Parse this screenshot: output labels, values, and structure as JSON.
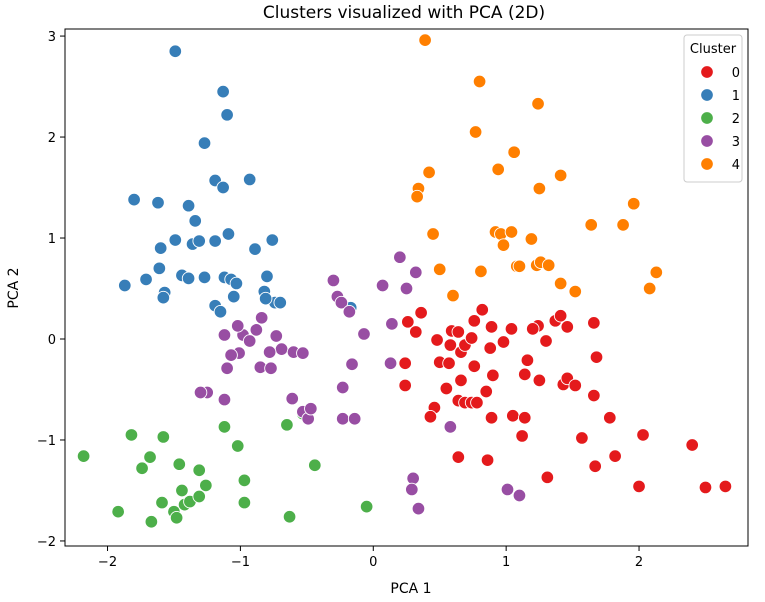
{
  "chart_data": {
    "type": "scatter",
    "title": "Clusters visualized with PCA (2D)",
    "xlabel": "PCA 1",
    "ylabel": "PCA 2",
    "xlim": [
      -2.32,
      2.82
    ],
    "ylim": [
      -2.05,
      3.07
    ],
    "xticks": [
      -2,
      -1,
      0,
      1,
      2
    ],
    "yticks": [
      -2,
      -1,
      0,
      1,
      2,
      3
    ],
    "xtick_labels": [
      "−2",
      "−1",
      "0",
      "1",
      "2"
    ],
    "ytick_labels": [
      "−2",
      "−1",
      "0",
      "1",
      "2",
      "3"
    ],
    "grid": false,
    "legend": {
      "title": "Cluster",
      "placement": "top-right"
    },
    "series": [
      {
        "name": "0",
        "color": "#e41a1c",
        "points": [
          [
            0.26,
            0.17
          ],
          [
            0.36,
            0.26
          ],
          [
            0.59,
            0.08
          ],
          [
            0.58,
            -0.06
          ],
          [
            0.48,
            -0.01
          ],
          [
            0.66,
            -0.13
          ],
          [
            0.64,
            0.07
          ],
          [
            0.76,
            0.18
          ],
          [
            0.82,
            0.29
          ],
          [
            0.89,
            0.12
          ],
          [
            0.69,
            -0.06
          ],
          [
            0.74,
            0.01
          ],
          [
            0.88,
            -0.09
          ],
          [
            0.98,
            -0.03
          ],
          [
            1.04,
            0.1
          ],
          [
            1.24,
            0.13
          ],
          [
            1.2,
            0.1
          ],
          [
            1.37,
            0.18
          ],
          [
            1.41,
            0.23
          ],
          [
            1.46,
            0.12
          ],
          [
            1.3,
            -0.02
          ],
          [
            1.16,
            -0.21
          ],
          [
            0.9,
            -0.36
          ],
          [
            1.14,
            -0.35
          ],
          [
            1.25,
            -0.41
          ],
          [
            1.43,
            -0.45
          ],
          [
            1.46,
            -0.39
          ],
          [
            1.52,
            -0.46
          ],
          [
            1.68,
            -0.18
          ],
          [
            1.66,
            0.16
          ],
          [
            0.24,
            -0.24
          ],
          [
            0.5,
            -0.23
          ],
          [
            0.57,
            -0.24
          ],
          [
            0.66,
            -0.41
          ],
          [
            0.76,
            -0.27
          ],
          [
            0.85,
            -0.52
          ],
          [
            0.55,
            -0.49
          ],
          [
            0.64,
            -0.61
          ],
          [
            0.69,
            -0.63
          ],
          [
            0.74,
            -0.63
          ],
          [
            0.78,
            -0.63
          ],
          [
            0.89,
            -0.78
          ],
          [
            0.46,
            -0.68
          ],
          [
            0.43,
            -0.77
          ],
          [
            1.05,
            -0.76
          ],
          [
            1.14,
            -0.78
          ],
          [
            1.66,
            -0.56
          ],
          [
            1.78,
            -0.78
          ],
          [
            1.57,
            -0.98
          ],
          [
            1.12,
            -0.96
          ],
          [
            2.03,
            -0.95
          ],
          [
            0.64,
            -1.17
          ],
          [
            0.86,
            -1.2
          ],
          [
            1.31,
            -1.37
          ],
          [
            1.67,
            -1.26
          ],
          [
            1.82,
            -1.16
          ],
          [
            2.0,
            -1.46
          ],
          [
            2.4,
            -1.05
          ],
          [
            2.5,
            -1.47
          ],
          [
            2.65,
            -1.46
          ],
          [
            0.24,
            -0.46
          ],
          [
            0.32,
            0.07
          ]
        ]
      },
      {
        "name": "1",
        "color": "#377eb8",
        "points": [
          [
            -1.49,
            2.85
          ],
          [
            -1.13,
            2.45
          ],
          [
            -1.1,
            2.22
          ],
          [
            -1.27,
            1.94
          ],
          [
            -1.19,
            1.57
          ],
          [
            -0.93,
            1.58
          ],
          [
            -1.13,
            1.5
          ],
          [
            -1.8,
            1.38
          ],
          [
            -1.62,
            1.35
          ],
          [
            -1.39,
            1.32
          ],
          [
            -1.34,
            1.17
          ],
          [
            -1.09,
            1.04
          ],
          [
            -1.36,
            0.94
          ],
          [
            -1.31,
            0.97
          ],
          [
            -1.19,
            0.97
          ],
          [
            -1.49,
            0.98
          ],
          [
            -0.76,
            0.98
          ],
          [
            -0.89,
            0.89
          ],
          [
            -1.6,
            0.9
          ],
          [
            -1.61,
            0.7
          ],
          [
            -1.71,
            0.59
          ],
          [
            -1.57,
            0.46
          ],
          [
            -1.44,
            0.63
          ],
          [
            -1.87,
            0.53
          ],
          [
            -1.39,
            0.6
          ],
          [
            -1.27,
            0.61
          ],
          [
            -1.12,
            0.61
          ],
          [
            -1.07,
            0.59
          ],
          [
            -1.03,
            0.55
          ],
          [
            -0.8,
            0.62
          ],
          [
            -0.82,
            0.47
          ],
          [
            -1.05,
            0.42
          ],
          [
            -1.58,
            0.41
          ],
          [
            -1.19,
            0.33
          ],
          [
            -1.15,
            0.27
          ],
          [
            -0.74,
            0.36
          ],
          [
            -0.7,
            0.36
          ],
          [
            -0.81,
            0.4
          ],
          [
            -0.17,
            0.31
          ]
        ]
      },
      {
        "name": "2",
        "color": "#4daf4a",
        "points": [
          [
            -2.18,
            -1.16
          ],
          [
            -1.92,
            -1.71
          ],
          [
            -1.82,
            -0.95
          ],
          [
            -1.74,
            -1.28
          ],
          [
            -1.68,
            -1.17
          ],
          [
            -1.67,
            -1.81
          ],
          [
            -1.58,
            -0.97
          ],
          [
            -1.59,
            -1.62
          ],
          [
            -1.46,
            -1.24
          ],
          [
            -1.5,
            -1.71
          ],
          [
            -1.48,
            -1.77
          ],
          [
            -1.44,
            -1.5
          ],
          [
            -1.42,
            -1.64
          ],
          [
            -1.38,
            -1.61
          ],
          [
            -1.31,
            -1.56
          ],
          [
            -1.31,
            -1.3
          ],
          [
            -1.26,
            -1.45
          ],
          [
            -1.12,
            -0.87
          ],
          [
            -1.02,
            -1.06
          ],
          [
            -0.97,
            -1.4
          ],
          [
            -0.97,
            -1.62
          ],
          [
            -0.65,
            -0.85
          ],
          [
            -0.63,
            -1.76
          ],
          [
            -0.53,
            -0.74
          ],
          [
            -0.44,
            -1.25
          ],
          [
            -0.05,
            -1.66
          ]
        ]
      },
      {
        "name": "3",
        "color": "#984ea3",
        "points": [
          [
            0.2,
            0.81
          ],
          [
            0.32,
            0.66
          ],
          [
            0.25,
            0.5
          ],
          [
            0.07,
            0.53
          ],
          [
            -0.3,
            0.58
          ],
          [
            -0.27,
            0.42
          ],
          [
            -0.24,
            0.36
          ],
          [
            -0.18,
            0.27
          ],
          [
            -0.07,
            0.05
          ],
          [
            -0.16,
            -0.25
          ],
          [
            -0.84,
            0.21
          ],
          [
            -0.88,
            0.09
          ],
          [
            -0.98,
            0.04
          ],
          [
            -1.02,
            0.13
          ],
          [
            -1.12,
            0.04
          ],
          [
            -1.01,
            -0.14
          ],
          [
            -0.93,
            -0.02
          ],
          [
            -0.73,
            0.03
          ],
          [
            -0.69,
            -0.1
          ],
          [
            -0.6,
            -0.13
          ],
          [
            -0.53,
            -0.14
          ],
          [
            -0.78,
            -0.13
          ],
          [
            -1.07,
            -0.16
          ],
          [
            -1.1,
            -0.29
          ],
          [
            -0.85,
            -0.28
          ],
          [
            -0.77,
            -0.29
          ],
          [
            -0.61,
            -0.59
          ],
          [
            -0.53,
            -0.72
          ],
          [
            -0.49,
            -0.79
          ],
          [
            -0.47,
            -0.69
          ],
          [
            -0.23,
            -0.48
          ],
          [
            -0.23,
            -0.79
          ],
          [
            -0.14,
            -0.79
          ],
          [
            -1.25,
            -0.53
          ],
          [
            -1.3,
            -0.53
          ],
          [
            -1.12,
            -0.6
          ],
          [
            0.14,
            0.15
          ],
          [
            0.13,
            -0.24
          ],
          [
            0.58,
            -0.87
          ],
          [
            0.3,
            -1.38
          ],
          [
            0.29,
            -1.49
          ],
          [
            0.34,
            -1.68
          ],
          [
            1.01,
            -1.49
          ],
          [
            1.1,
            -1.55
          ]
        ]
      },
      {
        "name": "4",
        "color": "#ff7f00",
        "points": [
          [
            0.39,
            2.96
          ],
          [
            0.8,
            2.55
          ],
          [
            1.24,
            2.33
          ],
          [
            0.77,
            2.05
          ],
          [
            1.06,
            1.85
          ],
          [
            0.94,
            1.68
          ],
          [
            0.42,
            1.65
          ],
          [
            1.41,
            1.62
          ],
          [
            0.34,
            1.49
          ],
          [
            1.25,
            1.49
          ],
          [
            1.96,
            1.34
          ],
          [
            1.64,
            1.13
          ],
          [
            1.88,
            1.13
          ],
          [
            0.45,
            1.04
          ],
          [
            0.92,
            1.06
          ],
          [
            0.96,
            1.04
          ],
          [
            1.04,
            1.06
          ],
          [
            1.19,
            0.99
          ],
          [
            0.98,
            0.93
          ],
          [
            0.33,
            1.41
          ],
          [
            1.08,
            0.72
          ],
          [
            1.1,
            0.72
          ],
          [
            1.23,
            0.73
          ],
          [
            1.26,
            0.76
          ],
          [
            1.32,
            0.73
          ],
          [
            0.81,
            0.67
          ],
          [
            0.5,
            0.69
          ],
          [
            2.13,
            0.66
          ],
          [
            1.41,
            0.55
          ],
          [
            1.52,
            0.47
          ],
          [
            2.08,
            0.5
          ],
          [
            0.6,
            0.43
          ]
        ]
      }
    ]
  }
}
